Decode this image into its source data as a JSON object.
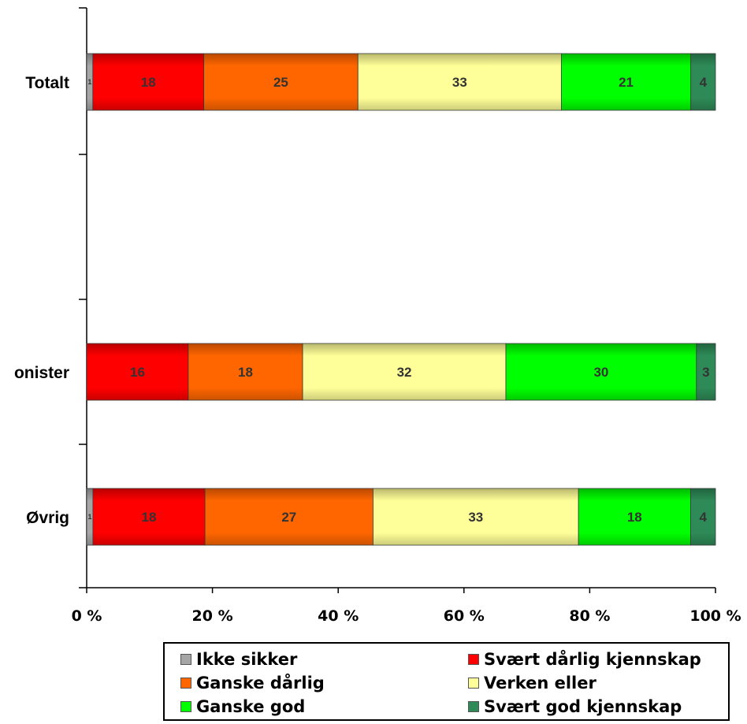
{
  "chart_data": {
    "type": "bar",
    "orientation": "horizontal",
    "stacked": "percent",
    "categories": [
      "Totalt",
      "onister",
      "Øvrig"
    ],
    "series": [
      {
        "name": "Ikke sikker",
        "color": "#a6a6a6",
        "values": [
          1,
          0,
          1
        ]
      },
      {
        "name": "Svært dårlig kjennskap",
        "color": "#ff0000",
        "values": [
          18,
          16,
          18
        ]
      },
      {
        "name": "Ganske dårlig",
        "color": "#ff6600",
        "values": [
          25,
          18,
          27
        ]
      },
      {
        "name": "Verken eller",
        "color": "#ffff99",
        "values": [
          33,
          32,
          33
        ]
      },
      {
        "name": "Ganske god",
        "color": "#00ff00",
        "values": [
          21,
          30,
          18
        ]
      },
      {
        "name": "Svært god kjennskap",
        "color": "#2e8b57",
        "values": [
          4,
          3,
          4
        ]
      }
    ],
    "xlim": [
      0,
      100
    ],
    "xticks": [
      "0 %",
      "20 %",
      "40 %",
      "60 %",
      "80 %",
      "100 %"
    ],
    "legend_position": "bottom",
    "grid": false
  }
}
